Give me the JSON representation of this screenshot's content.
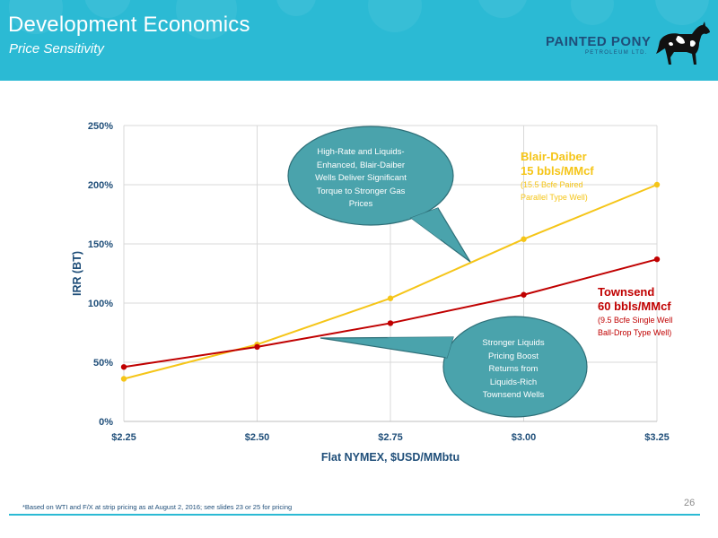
{
  "header": {
    "title": "Development Economics",
    "subtitle": "Price Sensitivity"
  },
  "logo": {
    "name": "PAINTED PONY",
    "subtitle": "PETROLEUM LTD."
  },
  "chart_data": {
    "type": "line",
    "xlabel": "Flat NYMEX, $USD/MMbtu",
    "ylabel": "IRR (BT)",
    "x": [
      2.25,
      2.5,
      2.75,
      3.0,
      3.25
    ],
    "x_tick_labels": [
      "$2.25",
      "$2.50",
      "$2.75",
      "$3.00",
      "$3.25"
    ],
    "ylim": [
      0,
      250
    ],
    "y_ticks": [
      0,
      50,
      100,
      150,
      200,
      250
    ],
    "y_tick_labels": [
      "0%",
      "50%",
      "100%",
      "150%",
      "200%",
      "250%"
    ],
    "grid": true,
    "series": [
      {
        "name": "Blair-Daiber",
        "label_lines": [
          "Blair-Daiber",
          "15 bbls/MMcf"
        ],
        "note_lines": [
          "(15.5 Bcfe Paired",
          "Parallel Type Well)"
        ],
        "color": "#f5c518",
        "values": [
          36,
          65,
          104,
          154,
          200
        ]
      },
      {
        "name": "Townsend",
        "label_lines": [
          "Townsend",
          "60 bbls/MMcf"
        ],
        "note_lines": [
          "(9.5 Bcfe Single Well",
          "Ball-Drop Type Well)"
        ],
        "color": "#c00000",
        "values": [
          46,
          63,
          83,
          107,
          137
        ]
      }
    ],
    "annotations": [
      {
        "lines": [
          "High-Rate and Liquids-",
          "Enhanced, Blair-Daiber",
          "Wells Deliver Significant",
          "Torque to Stronger Gas",
          "Prices"
        ]
      },
      {
        "lines": [
          "Stronger Liquids",
          "Pricing Boost",
          "Returns from",
          "Liquids-Rich",
          "Townsend Wells"
        ]
      }
    ]
  },
  "footer": {
    "footnote": "*Based on WTI and F/X at strip pricing as at August 2, 2016; see slides 23 or 25 for pricing",
    "page_number": "26"
  },
  "colors": {
    "header": "#2bbad4",
    "callout_fill": "#4aa3ac",
    "callout_stroke": "#2e6f78",
    "axis_text": "#1f4e79",
    "gridline": "#d9d9d9"
  }
}
